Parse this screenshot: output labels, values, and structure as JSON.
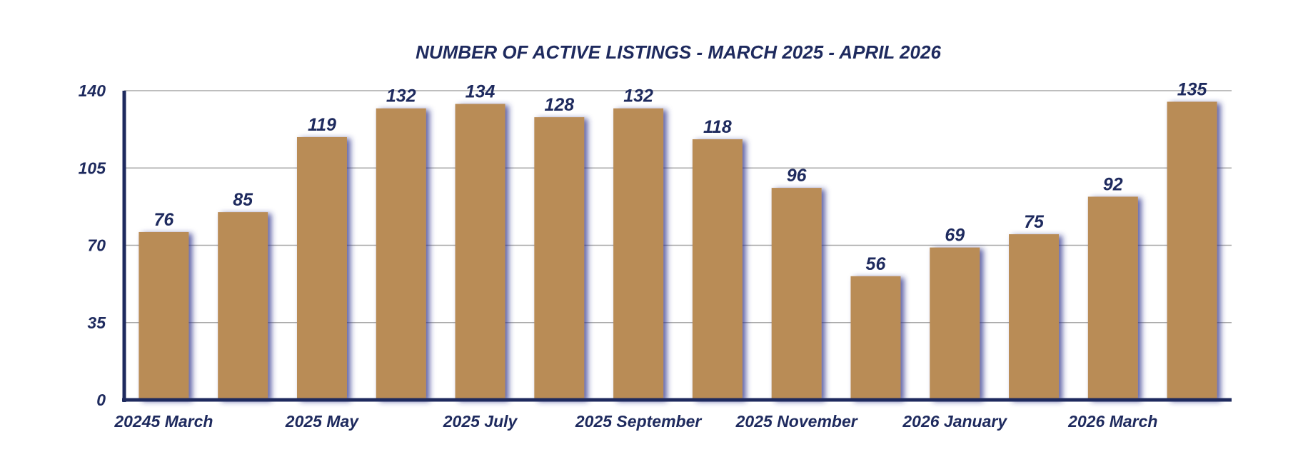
{
  "chart_data": {
    "type": "bar",
    "title": "NUMBER OF ACTIVE LISTINGS - MARCH 2025 - APRIL 2026",
    "xlabel": "",
    "ylabel": "",
    "categories": [
      "20245 March",
      "",
      "2025 May",
      "",
      "2025 July",
      "",
      "2025 September",
      "",
      "2025 November",
      "",
      "2026 January",
      "",
      "2026 March",
      ""
    ],
    "values": [
      76,
      85,
      119,
      132,
      134,
      128,
      132,
      118,
      96,
      56,
      69,
      75,
      92,
      135
    ],
    "ylim": [
      0,
      140
    ],
    "yticks": [
      "0",
      "35",
      "70",
      "105",
      "140"
    ],
    "grid": true,
    "legend": "none",
    "colors": {
      "bar": "#b98c56",
      "axis": "#1e2a5e",
      "grid": "#a8a8a8",
      "shadow": "#2a2f8a",
      "text": "#1e2a5e"
    }
  }
}
